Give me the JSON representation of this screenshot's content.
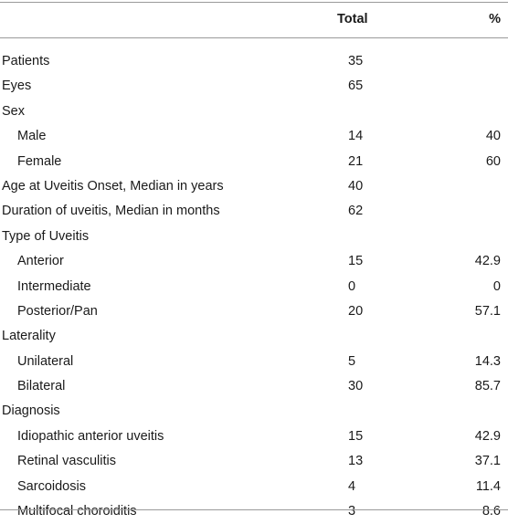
{
  "table": {
    "headers": {
      "label": "",
      "total": "Total",
      "pct": "%"
    },
    "rows": [
      {
        "label": "Patients",
        "total": "35",
        "pct": "",
        "indent": false
      },
      {
        "label": "Eyes",
        "total": "65",
        "pct": "",
        "indent": false
      },
      {
        "label": "Sex",
        "total": "",
        "pct": "",
        "indent": false
      },
      {
        "label": "Male",
        "total": "14",
        "pct": "40",
        "indent": true
      },
      {
        "label": "Female",
        "total": "21",
        "pct": "60",
        "indent": true
      },
      {
        "label": "Age at Uveitis Onset, Median in years",
        "total": "40",
        "pct": "",
        "indent": false
      },
      {
        "label": "Duration of uveitis, Median in months",
        "total": "62",
        "pct": "",
        "indent": false
      },
      {
        "label": "Type of Uveitis",
        "total": "",
        "pct": "",
        "indent": false
      },
      {
        "label": "Anterior",
        "total": "15",
        "pct": "42.9",
        "indent": true
      },
      {
        "label": "Intermediate",
        "total": "0",
        "pct": "0",
        "indent": true
      },
      {
        "label": "Posterior/Pan",
        "total": "20",
        "pct": "57.1",
        "indent": true
      },
      {
        "label": "Laterality",
        "total": "",
        "pct": "",
        "indent": false
      },
      {
        "label": "Unilateral",
        "total": "5",
        "pct": "14.3",
        "indent": true
      },
      {
        "label": "Bilateral",
        "total": "30",
        "pct": "85.7",
        "indent": true
      },
      {
        "label": "Diagnosis",
        "total": "",
        "pct": "",
        "indent": false
      },
      {
        "label": "Idiopathic anterior uveitis",
        "total": "15",
        "pct": "42.9",
        "indent": true
      },
      {
        "label": "Retinal vasculitis",
        "total": "13",
        "pct": "37.1",
        "indent": true
      },
      {
        "label": "Sarcoidosis",
        "total": "4",
        "pct": "11.4",
        "indent": true
      },
      {
        "label": "Multifocal choroiditis",
        "total": "3",
        "pct": "8.6",
        "indent": true
      }
    ]
  }
}
